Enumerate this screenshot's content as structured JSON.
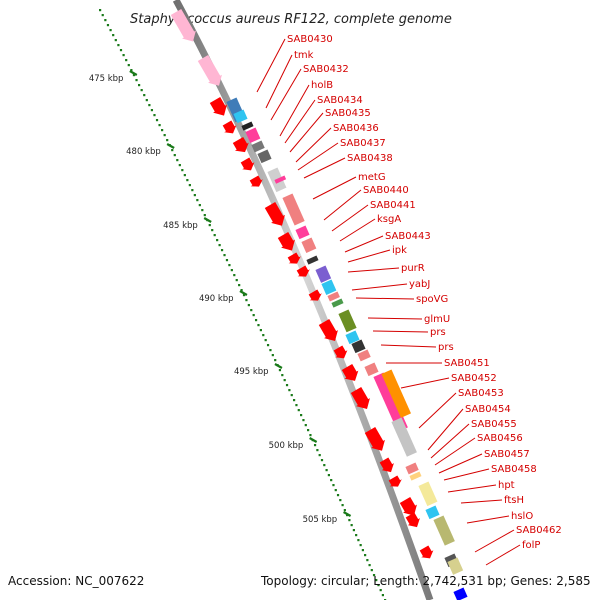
{
  "title": "Staphylococcus aureus RF122, complete genome",
  "footer": {
    "accession": "Accession: NC_007622",
    "summary": "Topology: circular; Length: 2,742,531 bp; Genes: 2,585"
  },
  "ticks": [
    "475 kbp",
    "480 kbp",
    "485 kbp",
    "490 kbp",
    "495 kbp",
    "500 kbp",
    "505 kbp"
  ],
  "genes": [
    "SAB0430",
    "tmk",
    "SAB0432",
    "holB",
    "SAB0434",
    "SAB0435",
    "SAB0436",
    "SAB0437",
    "SAB0438",
    "metG",
    "SAB0440",
    "SAB0441",
    "ksgA",
    "SAB0443",
    "ipk",
    "purR",
    "yabJ",
    "spoVG",
    "glmU",
    "prs",
    "prs",
    "SAB0451",
    "SAB0452",
    "SAB0453",
    "SAB0454",
    "SAB0455",
    "SAB0456",
    "SAB0457",
    "SAB0458",
    "hpt",
    "ftsH",
    "hslO",
    "SAB0462",
    "folP"
  ],
  "colors": {
    "gene_label": "#d40000",
    "cds_arrow": "#ff0000",
    "tick": "#1a7a1a",
    "backbone": "#8a8a8a"
  }
}
